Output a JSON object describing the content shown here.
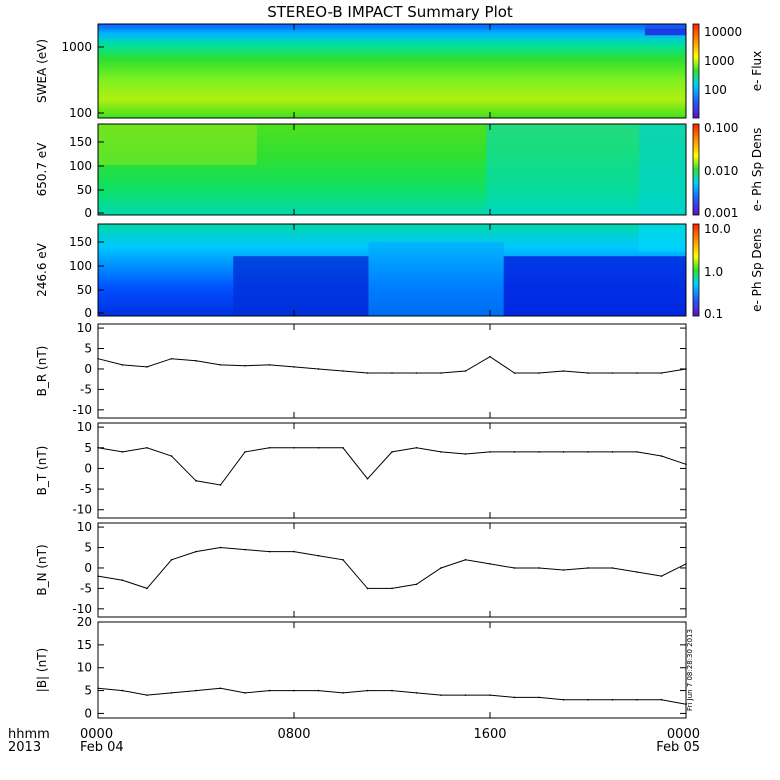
{
  "title": "STEREO-B IMPACT Summary Plot",
  "footer": {
    "hhmm": "hhmm",
    "year": "2013",
    "ticks": [
      "0000",
      "0800",
      "1600",
      "0000"
    ],
    "dates": [
      "Feb 04",
      "",
      "",
      "Feb 05"
    ],
    "timestamp": "Fri Jun  7 08:28:30 2013"
  },
  "chart_data": [
    {
      "type": "heatmap",
      "ylabel": "SWEA (eV)",
      "yscale": "log",
      "ylim": [
        100,
        2000
      ],
      "yticks": [
        "1000",
        "100"
      ],
      "colorbar": {
        "label": "e- Flux",
        "scale": "log",
        "ticks": [
          "10000",
          "1000",
          "100"
        ]
      },
      "x": [
        "0000",
        "0800",
        "1600",
        "0000"
      ]
    },
    {
      "type": "heatmap",
      "ylabel": "650.7 eV",
      "ylim": [
        0,
        180
      ],
      "yticks": [
        "150",
        "100",
        "50",
        "0"
      ],
      "colorbar": {
        "label": "e- Ph Sp Dens",
        "scale": "log",
        "ticks": [
          "0.100",
          "0.010",
          "0.001"
        ]
      }
    },
    {
      "type": "heatmap",
      "ylabel": "246.6 eV",
      "ylim": [
        0,
        180
      ],
      "yticks": [
        "150",
        "100",
        "50",
        "0"
      ],
      "colorbar": {
        "label": "e- Ph Sp Dens",
        "scale": "log",
        "ticks": [
          "10.0",
          "1.0",
          "0.1"
        ]
      }
    },
    {
      "type": "line",
      "ylabel": "B_R (nT)",
      "ylim": [
        -12,
        11
      ],
      "yticks": [
        "10",
        "5",
        "0",
        "-5",
        "-10"
      ],
      "x": [
        0,
        1,
        2,
        3,
        4,
        5,
        6,
        7,
        8,
        9,
        10,
        11,
        12,
        13,
        14,
        15,
        16,
        17,
        18,
        19,
        20,
        21,
        22,
        23,
        24
      ],
      "values": [
        2.5,
        1,
        0.5,
        2.5,
        2,
        1,
        0.8,
        1,
        0.5,
        0,
        -0.5,
        -1,
        -1,
        -1,
        -1,
        -0.5,
        3,
        -1,
        -1,
        -0.5,
        -1,
        -1,
        -1,
        -1,
        0
      ]
    },
    {
      "type": "line",
      "ylabel": "B_T (nT)",
      "ylim": [
        -12,
        11
      ],
      "yticks": [
        "10",
        "5",
        "0",
        "-5",
        "-10"
      ],
      "x": [
        0,
        1,
        2,
        3,
        4,
        5,
        6,
        7,
        8,
        9,
        10,
        11,
        12,
        13,
        14,
        15,
        16,
        17,
        18,
        19,
        20,
        21,
        22,
        23,
        24
      ],
      "values": [
        5,
        4,
        5,
        3,
        -3,
        -4,
        4,
        5,
        5,
        5,
        5,
        -2.5,
        4,
        5,
        4,
        3.5,
        4,
        4,
        4,
        4,
        4,
        4,
        4,
        3,
        1
      ]
    },
    {
      "type": "line",
      "ylabel": "B_N (nT)",
      "ylim": [
        -12,
        11
      ],
      "yticks": [
        "10",
        "5",
        "0",
        "-5",
        "-10"
      ],
      "x": [
        0,
        1,
        2,
        3,
        4,
        5,
        6,
        7,
        8,
        9,
        10,
        11,
        12,
        13,
        14,
        15,
        16,
        17,
        18,
        19,
        20,
        21,
        22,
        23,
        24
      ],
      "values": [
        -2,
        -3,
        -5,
        2,
        4,
        5,
        4.5,
        4,
        4,
        3,
        2,
        -5,
        -5,
        -4,
        0,
        2,
        1,
        0,
        0,
        -0.5,
        0,
        0,
        -1,
        -2,
        1
      ]
    },
    {
      "type": "line",
      "ylabel": "|B| (nT)",
      "ylim": [
        -1,
        20
      ],
      "yticks": [
        "20",
        "15",
        "10",
        "5",
        "0"
      ],
      "x": [
        0,
        1,
        2,
        3,
        4,
        5,
        6,
        7,
        8,
        9,
        10,
        11,
        12,
        13,
        14,
        15,
        16,
        17,
        18,
        19,
        20,
        21,
        22,
        23,
        24
      ],
      "values": [
        5.5,
        5,
        4,
        4.5,
        5,
        5.5,
        4.5,
        5,
        5,
        5,
        4.5,
        5,
        5,
        4.5,
        4,
        4,
        4,
        3.5,
        3.5,
        3,
        3,
        3,
        3,
        3,
        2
      ]
    }
  ]
}
